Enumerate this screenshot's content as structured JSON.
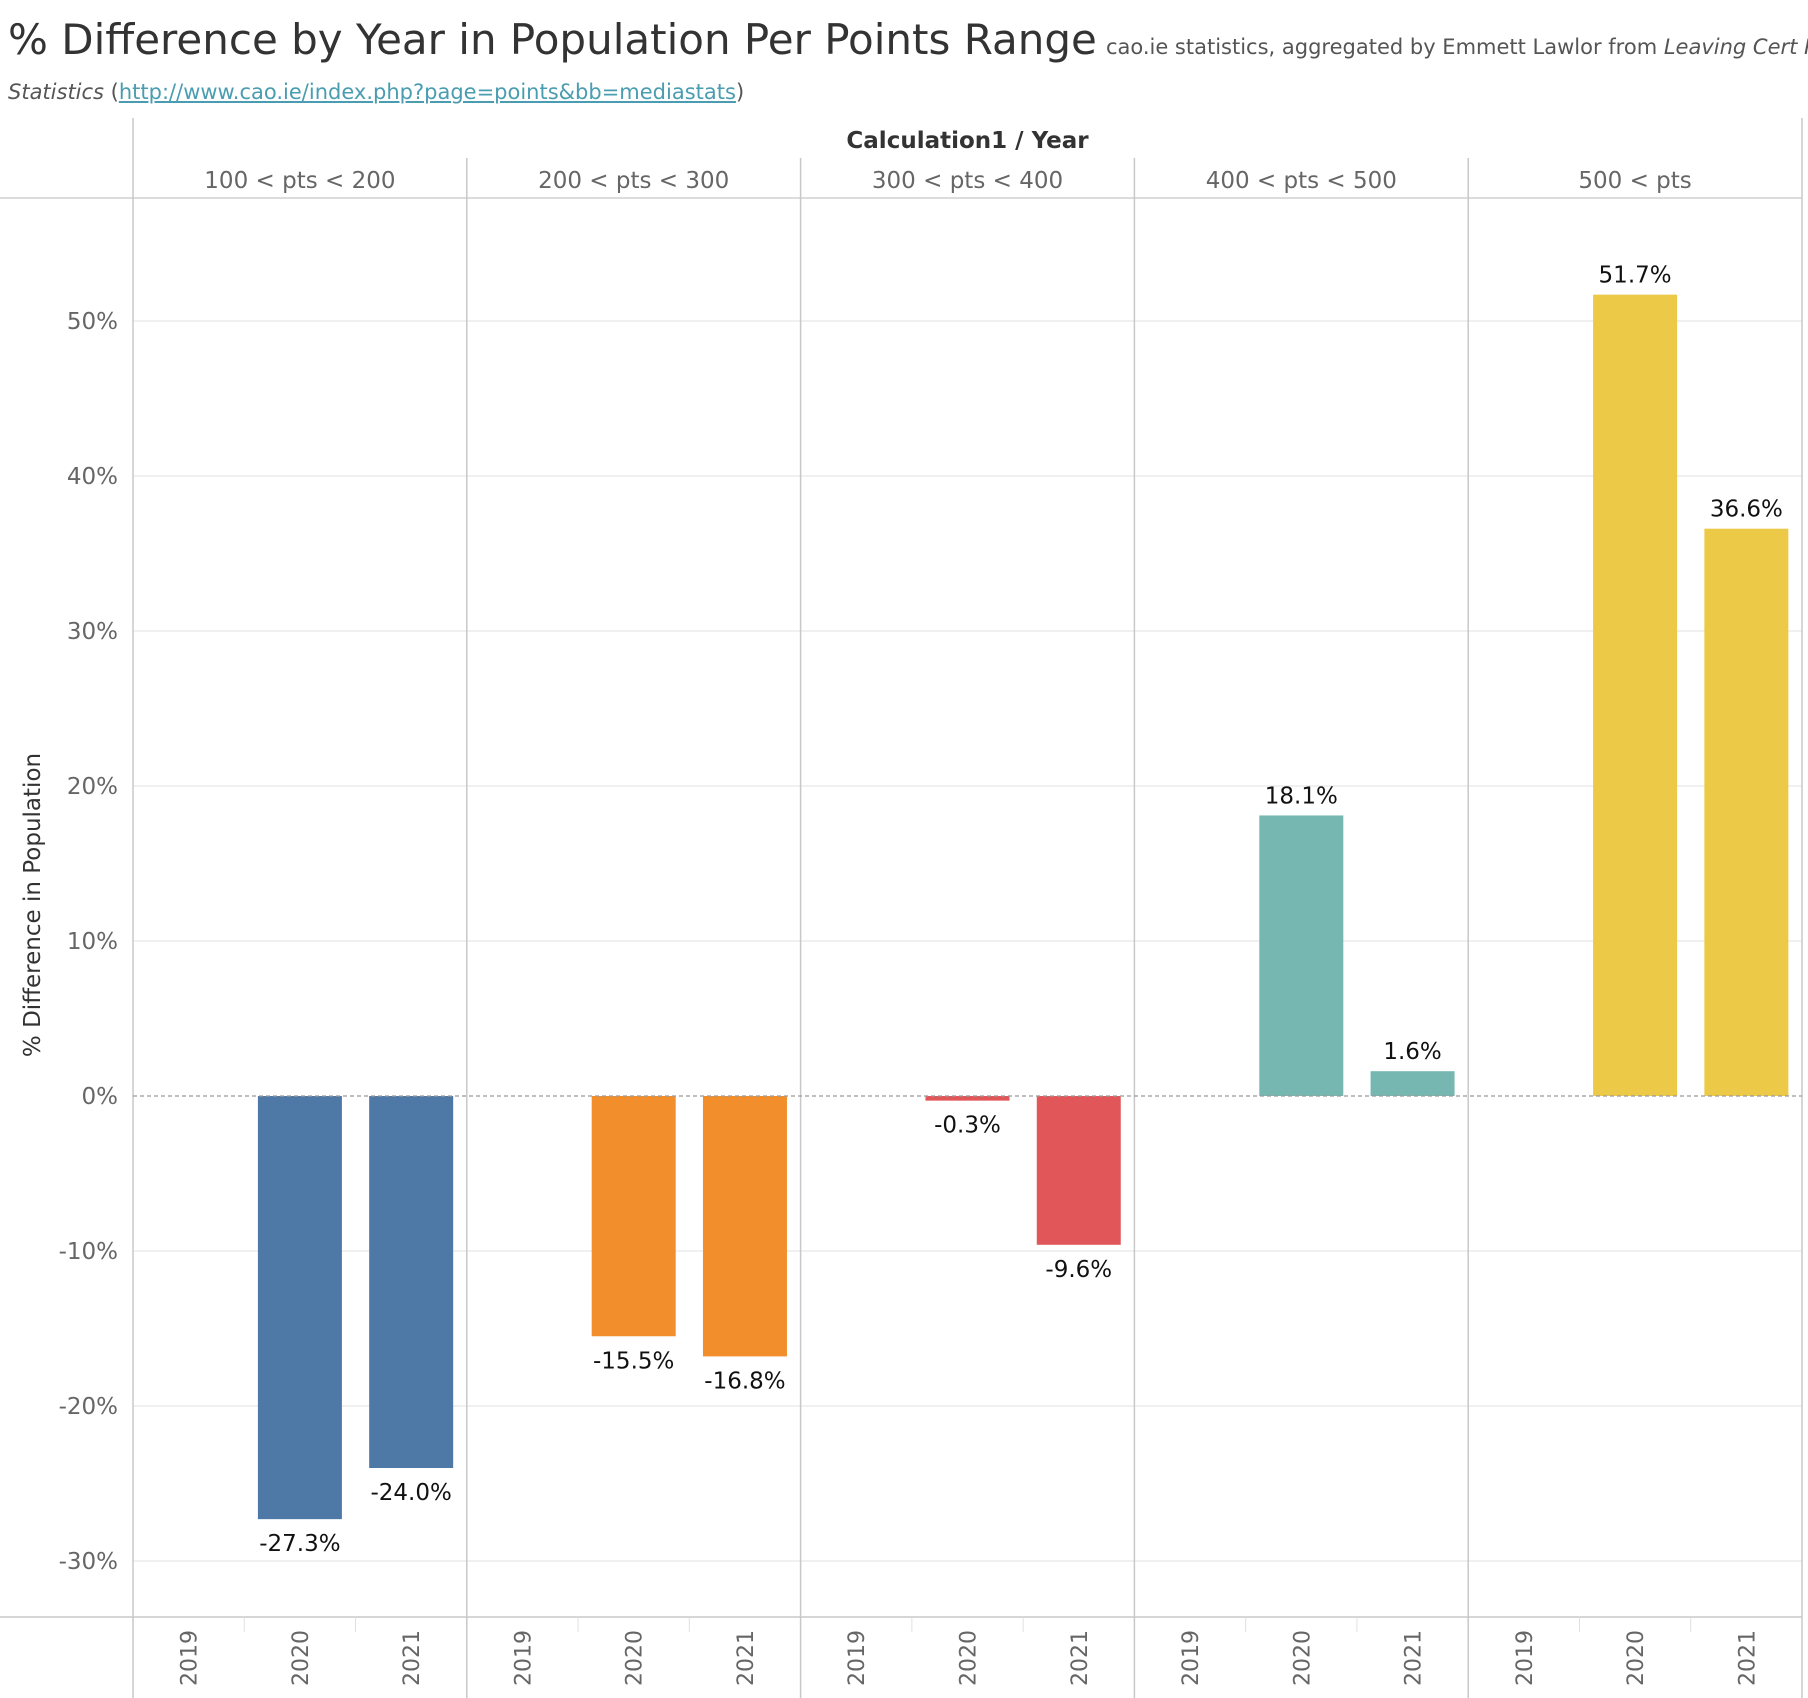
{
  "header": {
    "title": "% Difference by Year in Population Per Points Range",
    "subtitle_prefix": "cao.ie statistics, aggregated by Emmett Lawlor from ",
    "subtitle_italic_1": "Leaving Cert Points",
    "subtitle_italic_2": "Statistics",
    "subtitle_open": " (",
    "source_url": "http://www.cao.ie/index.php?page=points&bb=mediastats",
    "subtitle_close": ")"
  },
  "chart_data": {
    "type": "bar",
    "column_header": "Calculation1 / Year",
    "ylabel": "% Difference in Population",
    "ylim": [
      -35,
      58
    ],
    "yticks": [
      50,
      40,
      30,
      20,
      10,
      0,
      -10,
      -20,
      -30
    ],
    "ytick_labels": [
      "50%",
      "40%",
      "30%",
      "20%",
      "10%",
      "0%",
      "-10%",
      "-20%",
      "-30%"
    ],
    "years": [
      "2019",
      "2020",
      "2021"
    ],
    "grid": true,
    "panels": [
      {
        "name": "100 < pts < 200",
        "color": "#4e79a7",
        "values": [
          null,
          -27.3,
          -24.0
        ],
        "labels": [
          "",
          "-27.3%",
          "-24.0%"
        ]
      },
      {
        "name": "200 < pts < 300",
        "color": "#f28e2b",
        "values": [
          null,
          -15.5,
          -16.8
        ],
        "labels": [
          "",
          "-15.5%",
          "-16.8%"
        ]
      },
      {
        "name": "300 < pts < 400",
        "color": "#e15759",
        "values": [
          null,
          -0.3,
          -9.6
        ],
        "labels": [
          "",
          "-0.3%",
          "-9.6%"
        ]
      },
      {
        "name": "400 < pts < 500",
        "color": "#76b7b2",
        "values": [
          null,
          18.1,
          1.6
        ],
        "labels": [
          "",
          "18.1%",
          "1.6%"
        ]
      },
      {
        "name": "500 < pts",
        "color": "#edc948",
        "values": [
          null,
          51.7,
          36.6
        ],
        "labels": [
          "",
          "51.7%",
          "36.6%"
        ]
      }
    ]
  }
}
